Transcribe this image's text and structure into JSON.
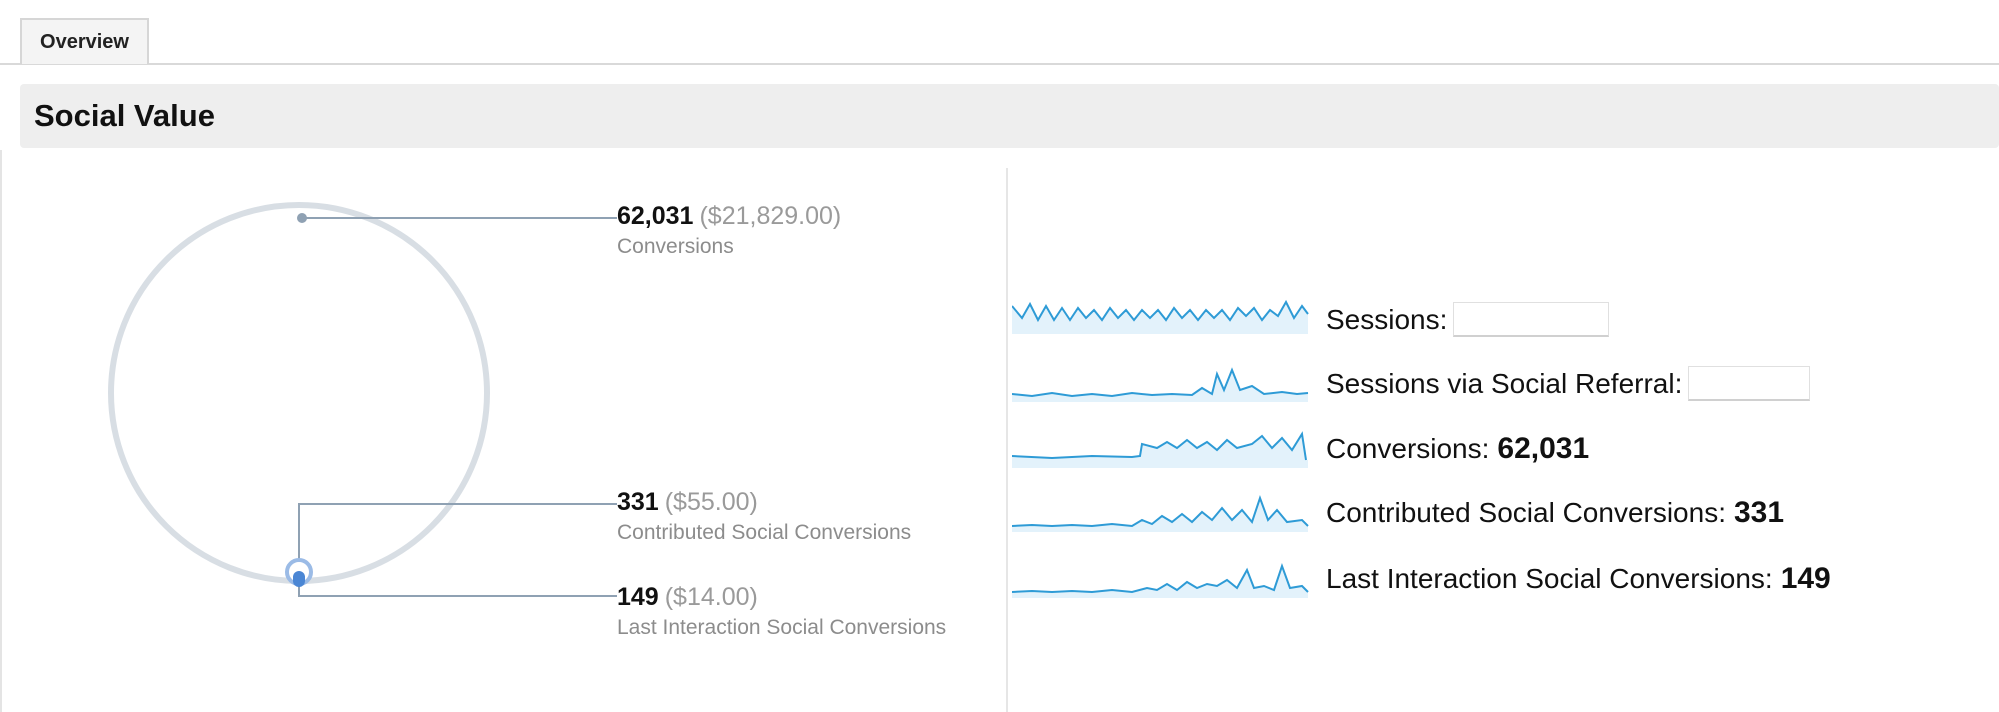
{
  "tabs": [
    {
      "label": "Overview"
    }
  ],
  "section": {
    "title": "Social Value"
  },
  "flow": [
    {
      "value": "62,031",
      "money": "($21,829.00)",
      "label": "Conversions"
    },
    {
      "value": "331",
      "money": "($55.00)",
      "label": "Contributed Social Conversions"
    },
    {
      "value": "149",
      "money": "($14.00)",
      "label": "Last Interaction Social Conversions"
    }
  ],
  "metrics": [
    {
      "label": "Sessions:",
      "value": ""
    },
    {
      "label": "Sessions via Social Referral:",
      "value": ""
    },
    {
      "label": "Conversions:",
      "value": "62,031"
    },
    {
      "label": "Contributed Social Conversions:",
      "value": "331"
    },
    {
      "label": "Last Interaction Social Conversions:",
      "value": "149"
    }
  ],
  "colors": {
    "ring": "#d8dee4",
    "connector": "#8fa1b3",
    "marker": "#4a86d4",
    "sparkline": "#2e9bd6",
    "spark_fill": "#e3f2fb"
  }
}
